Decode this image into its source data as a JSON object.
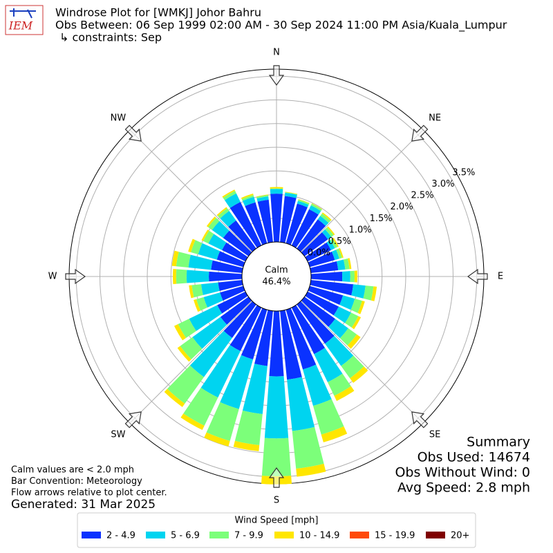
{
  "logo_text": "IEM",
  "chart_data": {
    "type": "windrose",
    "title": "Windrose Plot for [WMKJ] Johor Bahru",
    "subtitle": "Obs Between: 06 Sep 1999 02:00 AM - 30 Sep 2024 11:00 PM Asia/Kuala_Lumpur",
    "constraints": "↳ constraints: Sep",
    "x": [
      0,
      10,
      20,
      30,
      40,
      50,
      60,
      70,
      80,
      90,
      100,
      110,
      120,
      130,
      140,
      150,
      160,
      170,
      180,
      190,
      200,
      210,
      220,
      230,
      240,
      250,
      260,
      270,
      280,
      290,
      300,
      310,
      320,
      330,
      340,
      350
    ],
    "direction_labels": [
      "N",
      "NE",
      "E",
      "SE",
      "S",
      "SW",
      "W",
      "NW"
    ],
    "ylim": [
      0,
      3.65
    ],
    "yticks": [
      {
        "value": 0,
        "label": "0.0%"
      },
      {
        "value": 0.5,
        "label": "0.5%"
      },
      {
        "value": 1,
        "label": "1.0%"
      },
      {
        "value": 1.5,
        "label": "1.5%"
      },
      {
        "value": 2,
        "label": "2.0%"
      },
      {
        "value": 2.5,
        "label": "2.5%"
      },
      {
        "value": 3,
        "label": "3.0%"
      },
      {
        "value": 3.5,
        "label": "3.5%"
      }
    ],
    "grid": true,
    "calm": {
      "label": "Calm",
      "value": 46.4,
      "value_label": "46.4%"
    },
    "legend_title": "Wind Speed [mph]",
    "series": [
      {
        "name": "2 - 4.9",
        "color": "#0a32ff",
        "values": [
          1.02,
          0.98,
          0.87,
          0.85,
          0.76,
          0.61,
          0.55,
          0.55,
          0.58,
          0.66,
          0.9,
          0.73,
          0.73,
          0.8,
          1.02,
          1.09,
          1.31,
          1.46,
          1.38,
          1.17,
          1.09,
          1.02,
          0.87,
          0.73,
          0.66,
          0.51,
          0.51,
          0.7,
          0.66,
          0.58,
          0.55,
          0.66,
          0.73,
          1.02,
          0.9,
          0.9
        ]
      },
      {
        "name": "5 - 6.9",
        "color": "#00d4f0",
        "values": [
          0.1,
          0.07,
          0.06,
          0.09,
          0.09,
          0.09,
          0.09,
          0.1,
          0.15,
          0.17,
          0.26,
          0.26,
          0.29,
          0.34,
          0.58,
          0.66,
          0.8,
          1.09,
          1.31,
          1.02,
          1.09,
          1.09,
          1.02,
          0.73,
          0.66,
          0.36,
          0.36,
          0.47,
          0.48,
          0.41,
          0.32,
          0.29,
          0.25,
          0.2,
          0.12,
          0.07
        ]
      },
      {
        "name": "7 - 9.9",
        "color": "#7cff7a",
        "values": [
          0.01,
          0.01,
          0.03,
          0.04,
          0.06,
          0.06,
          0.06,
          0.06,
          0.09,
          0.09,
          0.17,
          0.16,
          0.17,
          0.22,
          0.32,
          0.32,
          0.63,
          0.8,
          0.8,
          0.66,
          0.7,
          0.66,
          0.69,
          0.32,
          0.26,
          0.16,
          0.2,
          0.22,
          0.26,
          0.16,
          0.12,
          0.1,
          0.07,
          0.06,
          0.04,
          0.03
        ]
      },
      {
        "name": "10 - 14.9",
        "color": "#ffe600",
        "values": [
          0.03,
          0.01,
          0.01,
          0.01,
          0.03,
          0.03,
          0.03,
          0.03,
          0.04,
          0.06,
          0.07,
          0.06,
          0.06,
          0.1,
          0.12,
          0.12,
          0.17,
          0.17,
          0.17,
          0.13,
          0.12,
          0.1,
          0.09,
          0.07,
          0.09,
          0.06,
          0.06,
          0.07,
          0.09,
          0.06,
          0.04,
          0.04,
          0.03,
          0.03,
          0.03,
          0.01
        ]
      },
      {
        "name": "15 - 19.9",
        "color": "#ff4a0a",
        "values": [
          0,
          0,
          0,
          0,
          0,
          0,
          0,
          0,
          0,
          0,
          0,
          0,
          0,
          0,
          0,
          0,
          0,
          0,
          0,
          0,
          0,
          0,
          0,
          0,
          0,
          0,
          0,
          0,
          0,
          0,
          0,
          0,
          0,
          0,
          0,
          0
        ]
      },
      {
        "name": "20+",
        "color": "#7f0000",
        "values": [
          0,
          0,
          0,
          0,
          0,
          0,
          0,
          0,
          0,
          0,
          0,
          0,
          0,
          0,
          0,
          0,
          0,
          0,
          0,
          0,
          0,
          0,
          0,
          0,
          0,
          0,
          0,
          0,
          0,
          0,
          0,
          0,
          0,
          0,
          0,
          0
        ]
      }
    ],
    "summary": [
      "Summary",
      "Obs Used: 14674",
      "Obs Without Wind: 0",
      "Avg Speed: 2.8 mph"
    ],
    "notes": [
      "Calm values are < 2.0 mph",
      "Bar Convention: Meteorology",
      "Flow arrows relative to plot center."
    ],
    "generated": "Generated: 31 Mar 2025"
  }
}
